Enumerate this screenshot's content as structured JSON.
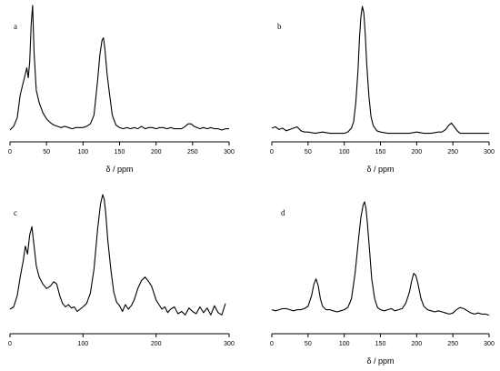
{
  "chart_data": [
    {
      "type": "line",
      "panel_label": "a",
      "xlabel": "δ / ppm",
      "xlim": [
        0,
        300
      ],
      "xticks": [
        0,
        50,
        100,
        150,
        200,
        250,
        300
      ],
      "tick_labels": [
        "0",
        "50",
        "100",
        "150",
        "200",
        "250",
        "300"
      ],
      "x": [
        0,
        5,
        10,
        14,
        18,
        21,
        23,
        25,
        27,
        29,
        31,
        33,
        36,
        40,
        45,
        50,
        55,
        60,
        65,
        70,
        75,
        80,
        85,
        90,
        95,
        100,
        105,
        110,
        115,
        120,
        123,
        126,
        128,
        130,
        133,
        136,
        140,
        145,
        150,
        155,
        160,
        165,
        170,
        175,
        180,
        185,
        190,
        195,
        200,
        205,
        210,
        215,
        220,
        225,
        230,
        235,
        240,
        244,
        248,
        252,
        256,
        260,
        265,
        270,
        275,
        280,
        285,
        290,
        295,
        300
      ],
      "values": [
        0.0,
        0.03,
        0.1,
        0.28,
        0.38,
        0.45,
        0.5,
        0.42,
        0.55,
        0.85,
        1.0,
        0.62,
        0.32,
        0.22,
        0.14,
        0.09,
        0.06,
        0.04,
        0.03,
        0.02,
        0.03,
        0.02,
        0.01,
        0.02,
        0.02,
        0.02,
        0.03,
        0.05,
        0.12,
        0.4,
        0.6,
        0.72,
        0.74,
        0.65,
        0.45,
        0.3,
        0.12,
        0.04,
        0.02,
        0.01,
        0.02,
        0.01,
        0.02,
        0.01,
        0.03,
        0.01,
        0.02,
        0.02,
        0.01,
        0.02,
        0.02,
        0.01,
        0.02,
        0.01,
        0.01,
        0.01,
        0.03,
        0.05,
        0.05,
        0.03,
        0.02,
        0.01,
        0.02,
        0.01,
        0.02,
        0.01,
        0.01,
        0.0,
        0.01,
        0.01
      ]
    },
    {
      "type": "line",
      "panel_label": "b",
      "xlabel": "δ / ppm",
      "xlim": [
        0,
        300
      ],
      "xticks": [
        0,
        50,
        100,
        150,
        200,
        250,
        300
      ],
      "tick_labels": [
        "0",
        "50",
        "100",
        "150",
        "200",
        "250",
        "300"
      ],
      "x": [
        0,
        5,
        10,
        15,
        20,
        25,
        30,
        35,
        40,
        45,
        50,
        60,
        70,
        80,
        90,
        100,
        105,
        110,
        113,
        116,
        119,
        121,
        123,
        125,
        127,
        129,
        131,
        134,
        137,
        140,
        145,
        150,
        160,
        170,
        180,
        190,
        200,
        210,
        220,
        230,
        235,
        240,
        244,
        248,
        252,
        256,
        260,
        270,
        280,
        290,
        300
      ],
      "values": [
        0.05,
        0.06,
        0.04,
        0.05,
        0.03,
        0.04,
        0.05,
        0.06,
        0.03,
        0.02,
        0.02,
        0.01,
        0.02,
        0.01,
        0.01,
        0.01,
        0.02,
        0.05,
        0.1,
        0.25,
        0.5,
        0.75,
        0.92,
        1.0,
        0.95,
        0.78,
        0.55,
        0.3,
        0.14,
        0.07,
        0.03,
        0.02,
        0.01,
        0.01,
        0.01,
        0.01,
        0.02,
        0.01,
        0.01,
        0.02,
        0.02,
        0.04,
        0.07,
        0.09,
        0.06,
        0.03,
        0.01,
        0.01,
        0.01,
        0.01,
        0.01
      ]
    },
    {
      "type": "line",
      "panel_label": "c",
      "xlabel": "",
      "xlim": [
        0,
        300
      ],
      "xticks": [
        0,
        100,
        200,
        300
      ],
      "tick_labels": [
        "0",
        "100",
        "200",
        "300"
      ],
      "x": [
        0,
        5,
        10,
        14,
        18,
        21,
        24,
        27,
        30,
        33,
        36,
        40,
        45,
        50,
        55,
        60,
        64,
        68,
        72,
        76,
        80,
        84,
        88,
        92,
        96,
        100,
        105,
        110,
        115,
        120,
        124,
        127,
        129,
        131,
        134,
        138,
        142,
        146,
        150,
        154,
        158,
        162,
        166,
        170,
        175,
        180,
        185,
        190,
        194,
        197,
        200,
        204,
        208,
        212,
        216,
        220,
        225,
        230,
        235,
        240,
        245,
        250,
        255,
        260,
        265,
        270,
        275,
        280,
        285,
        290,
        295
      ],
      "values": [
        0.0,
        0.02,
        0.12,
        0.28,
        0.42,
        0.55,
        0.48,
        0.65,
        0.72,
        0.55,
        0.38,
        0.28,
        0.22,
        0.18,
        0.2,
        0.24,
        0.22,
        0.12,
        0.05,
        0.02,
        0.04,
        0.01,
        0.02,
        -0.02,
        0.0,
        0.02,
        0.05,
        0.14,
        0.35,
        0.7,
        0.92,
        1.0,
        0.96,
        0.85,
        0.6,
        0.35,
        0.15,
        0.06,
        0.03,
        -0.02,
        0.04,
        0.0,
        0.03,
        0.08,
        0.18,
        0.25,
        0.28,
        0.24,
        0.2,
        0.14,
        0.08,
        0.04,
        0.0,
        0.02,
        -0.03,
        0.0,
        0.02,
        -0.04,
        -0.02,
        -0.05,
        0.01,
        -0.02,
        -0.04,
        0.02,
        -0.03,
        0.01,
        -0.05,
        0.03,
        -0.03,
        -0.05,
        0.05
      ]
    },
    {
      "type": "line",
      "panel_label": "d",
      "xlabel": "δ / ppm",
      "xlim": [
        0,
        300
      ],
      "xticks": [
        0,
        50,
        100,
        150,
        200,
        250,
        300
      ],
      "tick_labels": [
        "0",
        "50",
        "100",
        "150",
        "200",
        "250",
        "300"
      ],
      "x": [
        0,
        5,
        10,
        15,
        20,
        25,
        30,
        35,
        40,
        45,
        50,
        55,
        58,
        61,
        64,
        67,
        70,
        75,
        80,
        85,
        90,
        95,
        100,
        105,
        110,
        115,
        120,
        123,
        126,
        128,
        130,
        132,
        135,
        138,
        142,
        146,
        150,
        155,
        160,
        165,
        170,
        175,
        180,
        185,
        190,
        193,
        196,
        199,
        202,
        206,
        210,
        215,
        220,
        225,
        230,
        235,
        240,
        245,
        250,
        255,
        260,
        265,
        270,
        275,
        280,
        285,
        290,
        295,
        300
      ],
      "values": [
        0.02,
        0.01,
        0.02,
        0.03,
        0.03,
        0.02,
        0.01,
        0.02,
        0.02,
        0.03,
        0.05,
        0.15,
        0.25,
        0.3,
        0.24,
        0.12,
        0.05,
        0.02,
        0.02,
        0.01,
        0.0,
        0.01,
        0.02,
        0.04,
        0.12,
        0.35,
        0.68,
        0.86,
        0.97,
        1.0,
        0.94,
        0.8,
        0.55,
        0.3,
        0.12,
        0.04,
        0.02,
        0.01,
        0.02,
        0.03,
        0.01,
        0.02,
        0.03,
        0.08,
        0.18,
        0.28,
        0.35,
        0.33,
        0.25,
        0.12,
        0.05,
        0.02,
        0.01,
        0.0,
        0.01,
        0.0,
        -0.01,
        -0.02,
        -0.01,
        0.02,
        0.04,
        0.03,
        0.01,
        -0.01,
        -0.02,
        -0.01,
        -0.02,
        -0.02,
        -0.03
      ]
    }
  ]
}
